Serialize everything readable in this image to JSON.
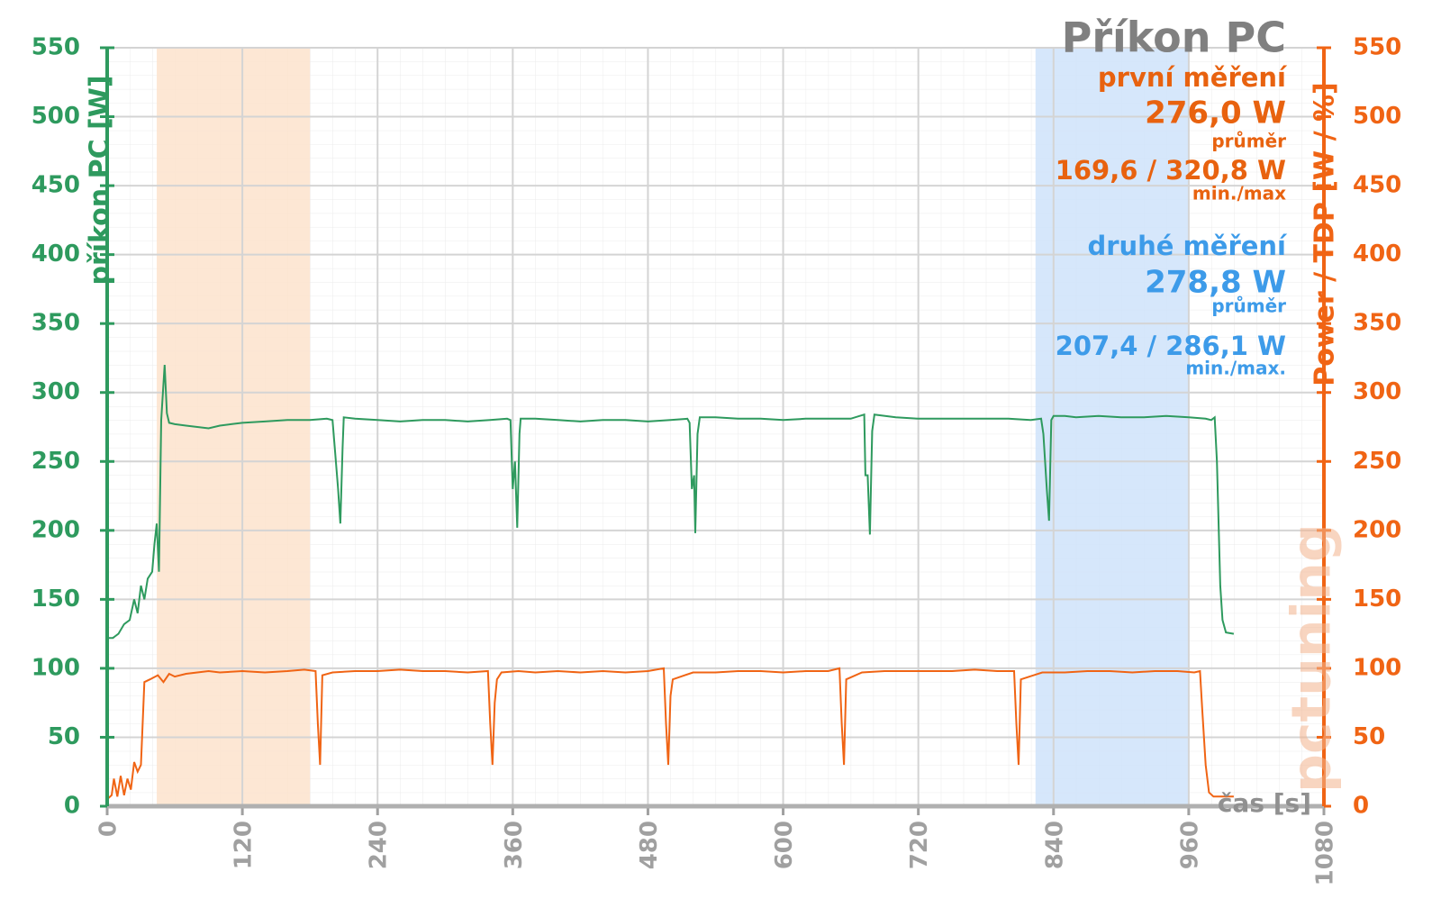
{
  "chart_data": {
    "type": "line",
    "title": "Příkon PC",
    "y_label": "příkon PC [W]",
    "y2_label": "Power / TDP [W / %]",
    "x_label": "čas [s]",
    "logo": "pctuning",
    "xlim": [
      0,
      1080
    ],
    "xticks": [
      0,
      120,
      240,
      360,
      480,
      600,
      720,
      840,
      960,
      1080
    ],
    "ylim": [
      0,
      550
    ],
    "yticks": [
      0,
      50,
      100,
      150,
      200,
      250,
      300,
      350,
      400,
      450,
      500,
      550
    ],
    "y2lim": [
      0,
      550
    ],
    "y2ticks": [
      0,
      50,
      100,
      150,
      200,
      250,
      300,
      350,
      400,
      450,
      500,
      550
    ],
    "grid": true,
    "bands": [
      {
        "from": 44,
        "to": 180,
        "color": "#fde3cc"
      },
      {
        "from": 824,
        "to": 960,
        "color": "#cfe3fa"
      }
    ],
    "annotations": [
      {
        "text": "první měření",
        "color": "#e8620f"
      },
      {
        "text": "276,0 W",
        "color": "#e8620f"
      },
      {
        "text": "průměr",
        "color": "#e8620f"
      },
      {
        "text": "169,6 / 320,8 W",
        "color": "#e8620f"
      },
      {
        "text": "min./max",
        "color": "#e8620f"
      },
      {
        "text": "druhé měření",
        "color": "#3d9be9"
      },
      {
        "text": "278,8 W",
        "color": "#3d9be9"
      },
      {
        "text": "průměr",
        "color": "#3d9be9"
      },
      {
        "text": "207,4 / 286,1 W",
        "color": "#3d9be9"
      },
      {
        "text": "min./max.",
        "color": "#3d9be9"
      }
    ],
    "series": [
      {
        "name": "příkon PC",
        "color": "#2e9a5e",
        "x": [
          0,
          5,
          10,
          15,
          20,
          24,
          27,
          30,
          33,
          36,
          40,
          42,
          44,
          46,
          48,
          51,
          53,
          55,
          60,
          70,
          80,
          90,
          100,
          110,
          120,
          140,
          160,
          180,
          195,
          200,
          202,
          205,
          207,
          209,
          210,
          220,
          240,
          260,
          280,
          300,
          320,
          340,
          355,
          358,
          360,
          362,
          364,
          366,
          367,
          380,
          400,
          420,
          440,
          460,
          480,
          500,
          515,
          517,
          519,
          521,
          522,
          524,
          526,
          540,
          560,
          580,
          600,
          620,
          640,
          660,
          672,
          673,
          675,
          677,
          679,
          681,
          700,
          720,
          740,
          760,
          780,
          800,
          820,
          829,
          831,
          834,
          836,
          838,
          840,
          850,
          860,
          880,
          900,
          920,
          940,
          960,
          975,
          980,
          983,
          985,
          988,
          990,
          993,
          1000
        ],
        "values": [
          122,
          122,
          125,
          132,
          135,
          150,
          140,
          160,
          150,
          165,
          170,
          190,
          205,
          170,
          280,
          320,
          285,
          278,
          277,
          276,
          275,
          274,
          276,
          277,
          278,
          279,
          280,
          280,
          281,
          280,
          260,
          230,
          205,
          260,
          282,
          281,
          280,
          279,
          280,
          280,
          279,
          280,
          281,
          280,
          230,
          250,
          202,
          270,
          281,
          281,
          280,
          279,
          280,
          280,
          279,
          280,
          281,
          278,
          230,
          240,
          198,
          270,
          282,
          282,
          281,
          281,
          280,
          281,
          281,
          281,
          284,
          240,
          240,
          197,
          272,
          284,
          282,
          281,
          281,
          281,
          281,
          281,
          280,
          281,
          270,
          230,
          207,
          280,
          283,
          283,
          282,
          283,
          282,
          282,
          283,
          282,
          281,
          280,
          282,
          250,
          160,
          135,
          126,
          125
        ]
      },
      {
        "name": "Power / TDP",
        "color": "#f06414",
        "axis": "y2",
        "x": [
          0,
          4,
          6,
          9,
          12,
          15,
          18,
          21,
          24,
          27,
          30,
          33,
          38,
          45,
          50,
          55,
          60,
          70,
          80,
          90,
          100,
          120,
          140,
          160,
          175,
          185,
          187,
          189,
          191,
          200,
          220,
          240,
          260,
          280,
          300,
          320,
          338,
          340,
          342,
          344,
          346,
          350,
          365,
          380,
          400,
          420,
          440,
          460,
          480,
          494,
          496,
          498,
          500,
          502,
          520,
          540,
          560,
          580,
          600,
          620,
          640,
          650,
          652,
          654,
          656,
          670,
          690,
          710,
          730,
          750,
          770,
          790,
          805,
          807,
          809,
          811,
          830,
          850,
          870,
          890,
          910,
          930,
          950,
          965,
          970,
          972,
          975,
          978,
          982,
          1000
        ],
        "values": [
          5,
          8,
          20,
          7,
          22,
          8,
          20,
          12,
          32,
          25,
          30,
          90,
          92,
          95,
          90,
          96,
          94,
          96,
          97,
          98,
          97,
          98,
          97,
          98,
          99,
          98,
          60,
          30,
          95,
          97,
          98,
          98,
          99,
          98,
          98,
          97,
          98,
          60,
          30,
          75,
          92,
          97,
          98,
          97,
          98,
          97,
          98,
          97,
          98,
          100,
          60,
          30,
          80,
          92,
          97,
          97,
          98,
          98,
          97,
          98,
          98,
          100,
          60,
          30,
          92,
          97,
          98,
          98,
          98,
          98,
          99,
          98,
          98,
          60,
          30,
          92,
          97,
          97,
          98,
          98,
          97,
          98,
          98,
          97,
          98,
          70,
          30,
          10,
          7,
          7
        ]
      }
    ]
  }
}
